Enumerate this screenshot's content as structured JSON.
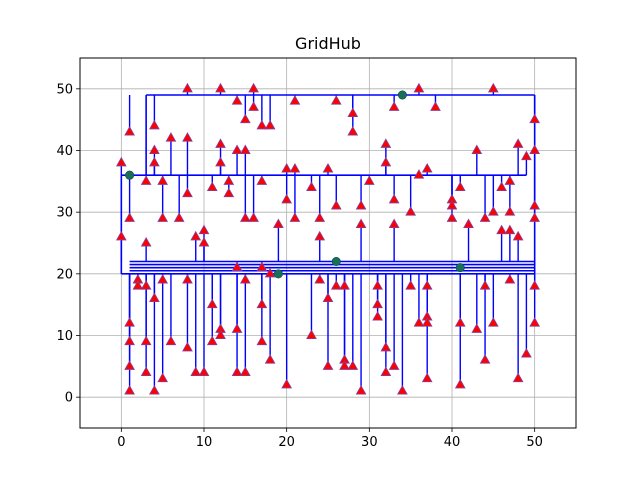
{
  "chart_data": {
    "type": "scatter",
    "title": "GridHub",
    "xlabel": "",
    "ylabel": "",
    "xlim": [
      -5,
      55
    ],
    "ylim": [
      -5,
      55
    ],
    "xticks": [
      0,
      10,
      20,
      30,
      40,
      50
    ],
    "yticks": [
      0,
      10,
      20,
      30,
      40,
      50
    ],
    "grid": true,
    "colors": {
      "network": "#0000ff",
      "terminals": "#ff0000",
      "terminal_edge": "#8040a0",
      "hubs": "#1a6f5a"
    },
    "hubs": [
      [
        1,
        36
      ],
      [
        19,
        20
      ],
      [
        26,
        22
      ],
      [
        34,
        49
      ],
      [
        41,
        21
      ]
    ],
    "trunks": [
      {
        "y": 49,
        "x": [
          3,
          50
        ]
      },
      {
        "y": 36,
        "x": [
          0,
          49
        ]
      },
      {
        "y": 22,
        "x": [
          1,
          50
        ]
      },
      {
        "y": 21.5,
        "x": [
          1,
          50
        ]
      },
      {
        "y": 21,
        "x": [
          1,
          50
        ]
      },
      {
        "y": 20.5,
        "x": [
          1,
          50
        ]
      },
      {
        "y": 20,
        "x": [
          0,
          50
        ]
      }
    ],
    "terminals": [
      [
        0,
        38
      ],
      [
        0,
        26
      ],
      [
        1,
        43
      ],
      [
        1,
        29
      ],
      [
        1,
        12
      ],
      [
        1,
        9
      ],
      [
        1,
        5
      ],
      [
        1,
        1
      ],
      [
        2,
        19
      ],
      [
        2,
        18
      ],
      [
        3,
        35
      ],
      [
        3,
        25
      ],
      [
        3,
        18
      ],
      [
        3,
        9
      ],
      [
        3,
        4
      ],
      [
        4,
        44
      ],
      [
        4,
        40
      ],
      [
        4,
        38
      ],
      [
        4,
        16
      ],
      [
        4,
        1
      ],
      [
        5,
        35
      ],
      [
        5,
        29
      ],
      [
        5,
        19
      ],
      [
        5,
        3
      ],
      [
        6,
        42
      ],
      [
        6,
        9
      ],
      [
        7,
        29
      ],
      [
        8,
        50
      ],
      [
        8,
        42
      ],
      [
        8,
        33
      ],
      [
        8,
        19
      ],
      [
        8,
        8
      ],
      [
        9,
        26
      ],
      [
        9,
        4
      ],
      [
        10,
        27
      ],
      [
        10,
        25
      ],
      [
        10,
        4
      ],
      [
        11,
        34
      ],
      [
        11,
        15
      ],
      [
        11,
        9
      ],
      [
        12,
        50
      ],
      [
        12,
        41
      ],
      [
        12,
        38
      ],
      [
        12,
        11
      ],
      [
        12,
        10
      ],
      [
        13,
        35
      ],
      [
        13,
        33
      ],
      [
        14,
        48
      ],
      [
        14,
        40
      ],
      [
        14,
        21
      ],
      [
        14,
        11
      ],
      [
        14,
        4
      ],
      [
        15,
        45
      ],
      [
        15,
        40
      ],
      [
        15,
        29
      ],
      [
        15,
        19
      ],
      [
        15,
        4
      ],
      [
        16,
        50
      ],
      [
        16,
        47
      ],
      [
        16,
        29
      ],
      [
        17,
        44
      ],
      [
        17,
        35
      ],
      [
        17,
        21
      ],
      [
        17,
        15
      ],
      [
        17,
        9
      ],
      [
        18,
        44
      ],
      [
        18,
        20
      ],
      [
        18,
        6
      ],
      [
        19,
        28
      ],
      [
        20,
        37
      ],
      [
        20,
        32
      ],
      [
        20,
        2
      ],
      [
        21,
        48
      ],
      [
        21,
        37
      ],
      [
        21,
        29
      ],
      [
        23,
        34
      ],
      [
        23,
        10
      ],
      [
        24,
        29
      ],
      [
        24,
        26
      ],
      [
        24,
        19
      ],
      [
        25,
        37
      ],
      [
        25,
        16
      ],
      [
        25,
        5
      ],
      [
        26,
        48
      ],
      [
        26,
        31
      ],
      [
        26,
        18
      ],
      [
        27,
        18
      ],
      [
        27,
        6
      ],
      [
        27,
        5
      ],
      [
        28,
        46
      ],
      [
        28,
        43
      ],
      [
        28,
        5
      ],
      [
        29,
        31
      ],
      [
        29,
        28
      ],
      [
        29,
        1
      ],
      [
        30,
        35
      ],
      [
        31,
        18
      ],
      [
        31,
        15
      ],
      [
        31,
        13
      ],
      [
        32,
        41
      ],
      [
        32,
        38
      ],
      [
        32,
        8
      ],
      [
        32,
        4
      ],
      [
        33,
        47
      ],
      [
        33,
        32
      ],
      [
        33,
        28
      ],
      [
        33,
        5
      ],
      [
        34,
        1
      ],
      [
        35,
        30
      ],
      [
        35,
        18
      ],
      [
        36,
        50
      ],
      [
        36,
        36
      ],
      [
        36,
        12
      ],
      [
        37,
        37
      ],
      [
        37,
        18
      ],
      [
        37,
        13
      ],
      [
        37,
        12
      ],
      [
        37,
        3
      ],
      [
        38,
        47
      ],
      [
        40,
        32
      ],
      [
        40,
        31
      ],
      [
        40,
        29
      ],
      [
        41,
        34
      ],
      [
        41,
        12
      ],
      [
        41,
        2
      ],
      [
        42,
        28
      ],
      [
        43,
        40
      ],
      [
        43,
        11
      ],
      [
        44,
        29
      ],
      [
        44,
        18
      ],
      [
        44,
        6
      ],
      [
        45,
        50
      ],
      [
        45,
        30
      ],
      [
        45,
        12
      ],
      [
        46,
        34
      ],
      [
        46,
        27
      ],
      [
        47,
        35
      ],
      [
        47,
        30
      ],
      [
        47,
        27
      ],
      [
        47,
        19
      ],
      [
        48,
        41
      ],
      [
        48,
        26
      ],
      [
        48,
        3
      ],
      [
        49,
        39
      ],
      [
        49,
        7
      ],
      [
        50,
        45
      ],
      [
        50,
        40
      ],
      [
        50,
        31
      ],
      [
        50,
        29
      ],
      [
        50,
        18
      ],
      [
        50,
        12
      ]
    ]
  }
}
